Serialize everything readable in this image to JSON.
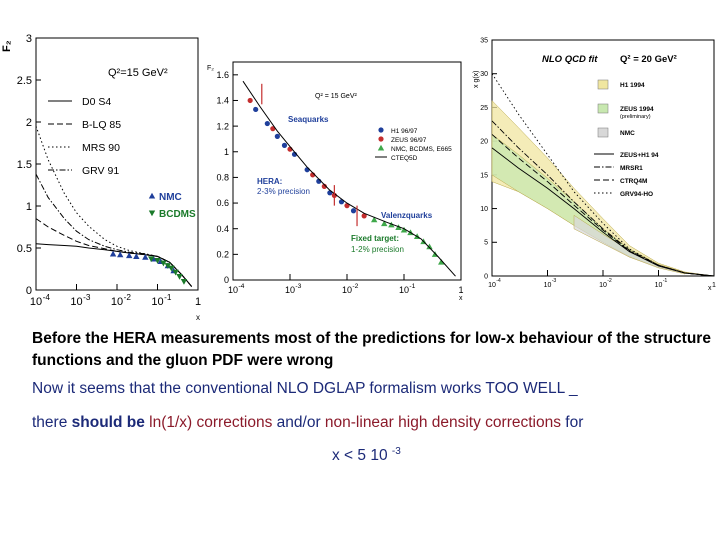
{
  "chart_data": [
    {
      "type": "line",
      "yaxis_label": "F₂",
      "xaxis_label": "x",
      "x_scale": "log",
      "xlim": [
        0.0001,
        1
      ],
      "ylim": [
        0,
        3
      ],
      "y_ticks": [
        "0",
        "0.5",
        "1",
        "1.5",
        "2",
        "2.5",
        "3"
      ],
      "x_ticks": [
        "10",
        "10",
        "10",
        "10",
        "1"
      ],
      "x_tick_exps": [
        "-4",
        "-3",
        "-2",
        "-1",
        ""
      ],
      "annotation": "Q²=15 GeV²",
      "legend_placement": "upper-left",
      "series": [
        {
          "name": "D0 S4",
          "style": "solid",
          "x": [
            0.0001,
            0.0002,
            0.0005,
            0.001,
            0.002,
            0.005,
            0.01,
            0.02,
            0.05,
            0.1,
            0.2,
            0.4,
            0.7
          ],
          "y": [
            0.55,
            0.54,
            0.53,
            0.52,
            0.5,
            0.48,
            0.46,
            0.44,
            0.42,
            0.4,
            0.33,
            0.18,
            0.04
          ]
        },
        {
          "name": "B-LQ 85",
          "style": "dashed",
          "x": [
            0.0001,
            0.0002,
            0.0005,
            0.001,
            0.002,
            0.005,
            0.01,
            0.02,
            0.05,
            0.1,
            0.2,
            0.4,
            0.7
          ],
          "y": [
            0.85,
            0.75,
            0.65,
            0.58,
            0.53,
            0.49,
            0.46,
            0.44,
            0.42,
            0.4,
            0.33,
            0.18,
            0.04
          ]
        },
        {
          "name": "MRS 90",
          "style": "dotted",
          "x": [
            0.0001,
            0.0002,
            0.0005,
            0.001,
            0.002,
            0.005,
            0.01,
            0.02,
            0.05,
            0.1,
            0.2,
            0.4,
            0.7
          ],
          "y": [
            1.95,
            1.55,
            1.15,
            0.92,
            0.76,
            0.6,
            0.52,
            0.47,
            0.43,
            0.4,
            0.33,
            0.18,
            0.04
          ]
        },
        {
          "name": "GRV 91",
          "style": "dashdot",
          "x": [
            0.0001,
            0.0002,
            0.0005,
            0.001,
            0.002,
            0.005,
            0.01,
            0.02,
            0.05,
            0.1,
            0.2,
            0.4,
            0.7
          ],
          "y": [
            1.38,
            1.1,
            0.85,
            0.7,
            0.6,
            0.52,
            0.48,
            0.45,
            0.43,
            0.4,
            0.33,
            0.18,
            0.04
          ]
        }
      ],
      "data_markers": [
        {
          "name": "NMC",
          "marker": "triangle-up",
          "color": "#1f3f9b",
          "x": [
            0.008,
            0.012,
            0.02,
            0.03,
            0.05,
            0.08,
            0.12,
            0.18,
            0.25
          ],
          "y": [
            0.43,
            0.42,
            0.41,
            0.4,
            0.39,
            0.37,
            0.34,
            0.29,
            0.23
          ]
        },
        {
          "name": "BCDMS",
          "marker": "triangle-down",
          "color": "#1a7a2a",
          "x": [
            0.07,
            0.1,
            0.14,
            0.18,
            0.22,
            0.28,
            0.35,
            0.45
          ],
          "y": [
            0.37,
            0.35,
            0.32,
            0.29,
            0.26,
            0.21,
            0.16,
            0.1
          ]
        }
      ]
    },
    {
      "type": "scatter",
      "yaxis_label": "F₂",
      "xaxis_label": "x",
      "x_scale": "log",
      "xlim": [
        0.0001,
        1
      ],
      "ylim": [
        0,
        1.7
      ],
      "y_ticks": [
        "0",
        "0.2",
        "0.4",
        "0.6",
        "0.8",
        "1",
        "1.2",
        "1.4",
        "1.6"
      ],
      "x_ticks": [
        "10",
        "10",
        "10",
        "10",
        "1"
      ],
      "x_tick_exps": [
        "-4",
        "-3",
        "-2",
        "-1",
        ""
      ],
      "annotation": "Q² = 15 GeV²",
      "labels": {
        "sea": "Seaquarks",
        "valence": "Valenzquarks",
        "hera": "HERA:",
        "hera_prec": "2-3% precision",
        "fixed": "Fixed target:",
        "fixed_prec": "1-2% precision"
      },
      "series": [
        {
          "name": "H1 96/97",
          "marker": "circle",
          "color": "#1f3f9b",
          "x": [
            0.00025,
            0.0004,
            0.0006,
            0.0008,
            0.0012,
            0.002,
            0.0032,
            0.005,
            0.008,
            0.013
          ],
          "y": [
            1.33,
            1.22,
            1.12,
            1.05,
            0.98,
            0.86,
            0.77,
            0.68,
            0.61,
            0.54
          ]
        },
        {
          "name": "ZEUS 96/97",
          "marker": "circle",
          "color": "#c42e2e",
          "x": [
            0.0002,
            0.0005,
            0.001,
            0.0025,
            0.004,
            0.006,
            0.01,
            0.02
          ],
          "y": [
            1.4,
            1.18,
            1.02,
            0.82,
            0.73,
            0.66,
            0.58,
            0.5
          ]
        },
        {
          "name": "NMC, BCDMS, E665",
          "marker": "triangle",
          "color": "#3fa84a",
          "x": [
            0.03,
            0.045,
            0.06,
            0.08,
            0.1,
            0.13,
            0.17,
            0.22,
            0.28,
            0.35,
            0.45
          ],
          "y": [
            0.47,
            0.44,
            0.43,
            0.41,
            0.39,
            0.37,
            0.34,
            0.3,
            0.26,
            0.2,
            0.14
          ]
        },
        {
          "name": "CTEQ5D",
          "style": "line",
          "color": "#000000",
          "x": [
            0.00015,
            0.0003,
            0.0006,
            0.001,
            0.002,
            0.005,
            0.01,
            0.02,
            0.05,
            0.1,
            0.2,
            0.4,
            0.8
          ],
          "y": [
            1.55,
            1.35,
            1.16,
            1.04,
            0.88,
            0.7,
            0.6,
            0.52,
            0.45,
            0.4,
            0.32,
            0.18,
            0.03
          ]
        }
      ]
    },
    {
      "type": "line",
      "title": "NLO QCD fit",
      "annotation": "Q² = 20 GeV²",
      "yaxis_label": "x g(x)",
      "xaxis_label": "x",
      "x_scale": "log",
      "xlim": [
        0.0001,
        1
      ],
      "ylim": [
        0,
        35
      ],
      "y_ticks": [
        "0",
        "5",
        "10",
        "15",
        "20",
        "25",
        "30",
        "35"
      ],
      "x_ticks": [
        "10",
        "10",
        "10",
        "10",
        "1"
      ],
      "x_tick_exps": [
        "-4",
        "-3",
        "-2",
        "-1",
        ""
      ],
      "legend_placement": "right",
      "bands": [
        {
          "name": "H1 1994",
          "color": "#f0e6a0",
          "x": [
            0.0001,
            0.0003,
            0.001,
            0.003,
            0.01,
            0.03,
            0.1,
            0.3,
            1
          ],
          "lo": [
            14,
            12.5,
            10,
            7.5,
            5,
            2.8,
            1.3,
            0.4,
            0
          ],
          "hi": [
            26,
            22,
            17.5,
            13,
            8.5,
            4.5,
            1.9,
            0.6,
            0
          ]
        },
        {
          "name": "ZEUS 1994",
          "note": "(preliminary)",
          "color": "#c8e8b0",
          "x": [
            0.0001,
            0.0003,
            0.001,
            0.003,
            0.01,
            0.03,
            0.1,
            0.3,
            1
          ],
          "lo": [
            15,
            12.5,
            10,
            7.5,
            5,
            2.9,
            1.3,
            0.4,
            0
          ],
          "hi": [
            21,
            18,
            14.5,
            11,
            7,
            4,
            1.7,
            0.5,
            0
          ]
        },
        {
          "name": "NMC",
          "color": "#d8d8d8",
          "x": [
            0.003,
            0.01,
            0.03,
            0.1,
            0.3
          ],
          "lo": [
            7,
            4.8,
            2.8,
            1.2,
            0.3
          ],
          "hi": [
            9,
            6.2,
            3.8,
            1.7,
            0.5
          ]
        }
      ],
      "series": [
        {
          "name": "ZEUS+H1 94",
          "style": "solid",
          "x": [
            0.0001,
            0.0003,
            0.001,
            0.003,
            0.01,
            0.03,
            0.1,
            0.3,
            1
          ],
          "y": [
            19,
            16,
            13,
            10,
            6.5,
            3.6,
            1.5,
            0.45,
            0
          ]
        },
        {
          "name": "MRSR1",
          "style": "dashdot",
          "x": [
            0.0001,
            0.0003,
            0.001,
            0.003,
            0.01,
            0.03,
            0.1,
            0.3,
            1
          ],
          "y": [
            23,
            19,
            15,
            11,
            7,
            3.8,
            1.6,
            0.45,
            0
          ]
        },
        {
          "name": "CTRQ4M",
          "style": "dashed",
          "x": [
            0.0001,
            0.0003,
            0.001,
            0.003,
            0.01,
            0.03,
            0.1,
            0.3,
            1
          ],
          "y": [
            21,
            17.5,
            14,
            10.5,
            6.8,
            3.7,
            1.55,
            0.45,
            0
          ]
        },
        {
          "name": "GRV94-HO",
          "style": "dotted",
          "x": [
            0.0001,
            0.0003,
            0.001,
            0.003,
            0.01,
            0.03,
            0.1,
            0.3,
            1
          ],
          "y": [
            30,
            24,
            18,
            12.5,
            7.8,
            4,
            1.6,
            0.45,
            0
          ]
        }
      ]
    }
  ],
  "text": {
    "line1": "Before the HERA measurements most of the predictions for low-x behaviour of the structure functions and the gluon PDF were wrong",
    "line2": "Now it seems that the conventional NLO DGLAP formalism works TOO WELL _",
    "line3_a": "there ",
    "line3_b": "should be",
    "line3_c": " ln(1/x)",
    "line3_d": " corrections",
    "line3_e": " and/or ",
    "line3_f": "non-linear high density corrections",
    "line3_g": " for",
    "line4_a": "x < 5 10 ",
    "line4_exp": "-3"
  }
}
